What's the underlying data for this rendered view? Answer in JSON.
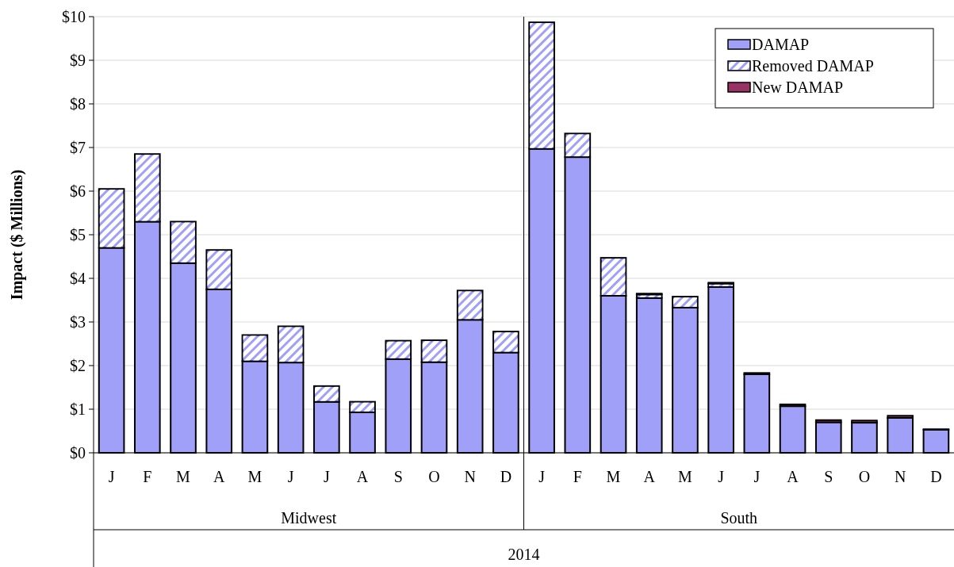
{
  "chart_data": [
    {
      "type": "bar",
      "stacked": true,
      "ylabel": "Impact ($ Millions)",
      "xlabel": "Midwest",
      "categories": [
        "J",
        "F",
        "M",
        "A",
        "M",
        "J",
        "J",
        "A",
        "S",
        "O",
        "N",
        "D"
      ],
      "series": [
        {
          "color": "#a0a0f8",
          "values": [
            4.7,
            5.3,
            4.35,
            3.75,
            2.1,
            2.07,
            1.17,
            0.93,
            2.15,
            2.08,
            3.05,
            2.3
          ]
        },
        {
          "color": "#a0a0f8",
          "values": [
            1.35,
            1.55,
            0.95,
            0.9,
            0.6,
            0.83,
            0.36,
            0.24,
            0.42,
            0.5,
            0.67,
            0.48
          ]
        }
      ],
      "ylim": [
        0,
        10
      ],
      "yticks": [
        {
          "value": 0,
          "label": "$0"
        },
        {
          "value": 1,
          "label": "$1"
        },
        {
          "value": 2,
          "label": "$2"
        },
        {
          "value": 3,
          "label": "$3"
        },
        {
          "value": 4,
          "label": "$4"
        },
        {
          "value": 5,
          "label": "$5"
        },
        {
          "value": 6,
          "label": "$6"
        },
        {
          "value": 7,
          "label": "$7"
        },
        {
          "value": 8,
          "label": "$8"
        },
        {
          "value": 9,
          "label": "$9"
        },
        {
          "value": 10,
          "label": "$10"
        }
      ],
      "grid": "y",
      "annotations": [
        "2014"
      ]
    },
    {
      "type": "bar",
      "stacked": true,
      "xlabel": "South",
      "categories": [
        "J",
        "F",
        "M",
        "A",
        "M",
        "J",
        "J",
        "A",
        "S",
        "O",
        "N",
        "D"
      ],
      "series": [
        {
          "name": "DAMAP",
          "color": "#a0a0f8",
          "values": [
            6.97,
            6.78,
            3.6,
            3.55,
            3.33,
            3.8,
            1.8,
            1.07,
            0.7,
            0.69,
            0.8,
            0.53
          ]
        },
        {
          "name": "Removed DAMAP",
          "color": "#a0a0f8",
          "values": [
            2.9,
            0.54,
            0.87,
            0.08,
            0.25,
            0.08,
            null,
            null,
            0,
            0,
            0,
            0
          ]
        },
        {
          "name": "New DAMAP",
          "color": "#993366",
          "values": [
            0,
            0,
            0,
            0.02,
            0,
            0.02,
            0.03,
            0.04,
            0.05,
            0.05,
            0.05,
            0.01
          ]
        }
      ],
      "ylim": [
        0,
        10
      ],
      "yticks": [
        0,
        1,
        2,
        3,
        4,
        5,
        6,
        7,
        8,
        9,
        10
      ],
      "tick_labels": "x",
      "grid": "y",
      "legend": "top right"
    }
  ]
}
